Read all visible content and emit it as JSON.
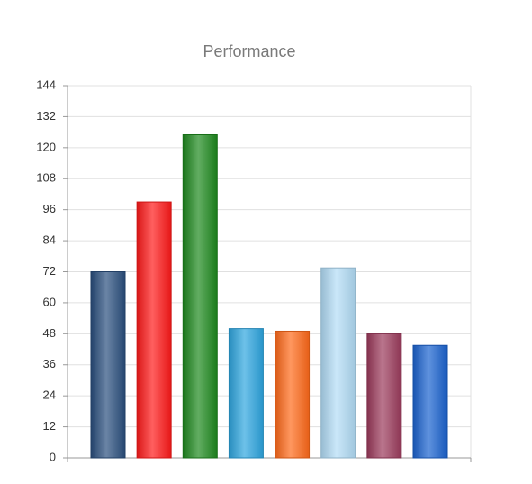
{
  "chart_data": {
    "type": "bar",
    "title": "Performance",
    "categories": [
      null,
      null,
      null,
      null,
      null,
      null,
      null,
      null
    ],
    "values": [
      72,
      99,
      125,
      50,
      49,
      73.5,
      48,
      43.5
    ],
    "colors": [
      "#2a4f7e",
      "#ff1a1a",
      "#1e8a1e",
      "#2ea6e0",
      "#ff6a1a",
      "#b3ddf7",
      "#9c3b5c",
      "#1b63d0"
    ],
    "ylim": [
      0,
      144
    ],
    "yticks": [
      0,
      12,
      24,
      36,
      48,
      60,
      72,
      84,
      96,
      108,
      120,
      132,
      144
    ],
    "grid": true
  }
}
